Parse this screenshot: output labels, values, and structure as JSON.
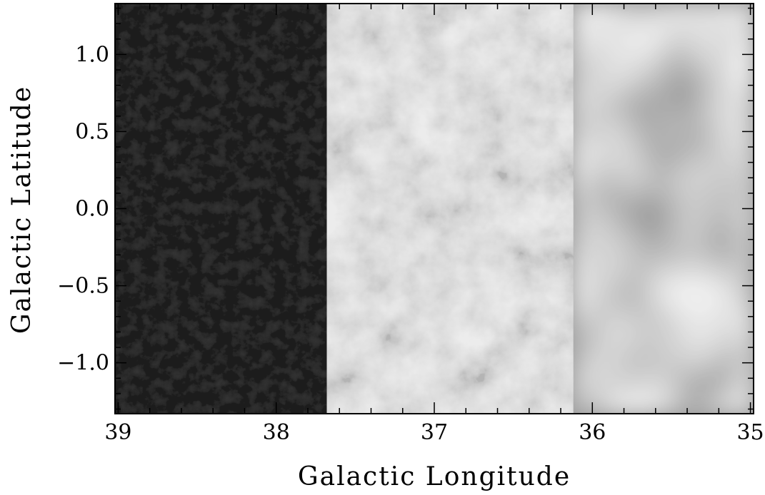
{
  "chart_data": {
    "type": "heatmap",
    "title": "",
    "xlabel": "Galactic Longitude",
    "ylabel": "Galactic Latitude",
    "xlim": [
      39.02,
      34.98
    ],
    "ylim": [
      -1.33,
      1.33
    ],
    "x_ticks": [
      39,
      38,
      37,
      36,
      35
    ],
    "x_tick_labels": [
      "39",
      "38",
      "37",
      "36",
      "35"
    ],
    "y_ticks": [
      1.0,
      0.5,
      0.0,
      -0.5,
      -1.0
    ],
    "y_tick_labels": [
      "1.0",
      "0.5",
      "0.0",
      "−0.5",
      "−1.0"
    ],
    "x_minor_step": 0.2,
    "y_minor_step": 0.1,
    "colormap": "grayscale",
    "panels": [
      {
        "name": "left",
        "l_start": 39.02,
        "l_end": 37.68,
        "mean_brightness": "dark",
        "texture": "fine-noise",
        "tone": "#3e3e3e"
      },
      {
        "name": "middle",
        "l_start": 37.68,
        "l_end": 36.12,
        "mean_brightness": "bright",
        "texture": "filamentary",
        "tone": "#b4b4b4"
      },
      {
        "name": "right",
        "l_start": 36.12,
        "l_end": 34.98,
        "mean_brightness": "medium",
        "texture": "smooth",
        "tone": "#9a9a9a"
      }
    ]
  }
}
